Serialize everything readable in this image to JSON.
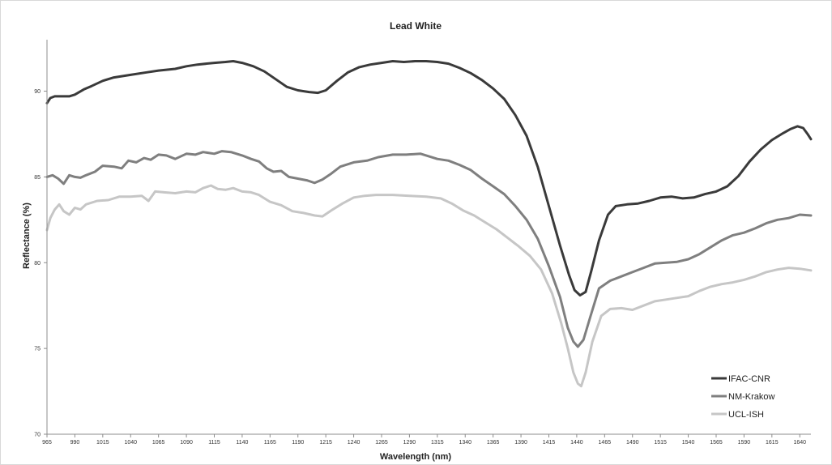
{
  "chart_data": {
    "type": "line",
    "title": "Lead White",
    "xlabel": "Wavelength (nm)",
    "ylabel": "Reflectance (%)",
    "xlim": [
      965,
      1650
    ],
    "ylim": [
      70,
      93
    ],
    "x_ticks": [
      965,
      990,
      1015,
      1040,
      1065,
      1090,
      1115,
      1140,
      1165,
      1190,
      1215,
      1240,
      1265,
      1290,
      1315,
      1340,
      1365,
      1390,
      1415,
      1440,
      1465,
      1490,
      1515,
      1540,
      1565,
      1590,
      1615,
      1640
    ],
    "y_ticks": [
      70,
      75,
      80,
      85,
      90
    ],
    "grid": false,
    "legend_position": "bottom-right",
    "series": [
      {
        "name": "IFAC-CNR",
        "color": "#3a3a3a",
        "points": [
          [
            965,
            89.3
          ],
          [
            968,
            89.6
          ],
          [
            972,
            89.7
          ],
          [
            978,
            89.7
          ],
          [
            985,
            89.7
          ],
          [
            990,
            89.8
          ],
          [
            998,
            90.1
          ],
          [
            1005,
            90.3
          ],
          [
            1015,
            90.6
          ],
          [
            1025,
            90.8
          ],
          [
            1040,
            90.95
          ],
          [
            1055,
            91.1
          ],
          [
            1065,
            91.2
          ],
          [
            1080,
            91.3
          ],
          [
            1090,
            91.45
          ],
          [
            1100,
            91.55
          ],
          [
            1115,
            91.65
          ],
          [
            1125,
            91.7
          ],
          [
            1132,
            91.75
          ],
          [
            1140,
            91.65
          ],
          [
            1150,
            91.45
          ],
          [
            1160,
            91.15
          ],
          [
            1170,
            90.7
          ],
          [
            1180,
            90.25
          ],
          [
            1190,
            90.05
          ],
          [
            1200,
            89.95
          ],
          [
            1208,
            89.9
          ],
          [
            1215,
            90.05
          ],
          [
            1225,
            90.6
          ],
          [
            1235,
            91.1
          ],
          [
            1245,
            91.4
          ],
          [
            1255,
            91.55
          ],
          [
            1265,
            91.65
          ],
          [
            1275,
            91.75
          ],
          [
            1285,
            91.7
          ],
          [
            1295,
            91.75
          ],
          [
            1305,
            91.75
          ],
          [
            1315,
            91.7
          ],
          [
            1325,
            91.6
          ],
          [
            1335,
            91.35
          ],
          [
            1345,
            91.05
          ],
          [
            1355,
            90.65
          ],
          [
            1365,
            90.15
          ],
          [
            1375,
            89.55
          ],
          [
            1385,
            88.6
          ],
          [
            1395,
            87.4
          ],
          [
            1405,
            85.6
          ],
          [
            1415,
            83.3
          ],
          [
            1425,
            81.0
          ],
          [
            1433,
            79.3
          ],
          [
            1438,
            78.4
          ],
          [
            1443,
            78.1
          ],
          [
            1448,
            78.3
          ],
          [
            1453,
            79.5
          ],
          [
            1460,
            81.3
          ],
          [
            1468,
            82.8
          ],
          [
            1475,
            83.3
          ],
          [
            1485,
            83.4
          ],
          [
            1495,
            83.45
          ],
          [
            1505,
            83.6
          ],
          [
            1515,
            83.8
          ],
          [
            1525,
            83.85
          ],
          [
            1535,
            83.75
          ],
          [
            1545,
            83.8
          ],
          [
            1555,
            84.0
          ],
          [
            1565,
            84.15
          ],
          [
            1575,
            84.45
          ],
          [
            1585,
            85.05
          ],
          [
            1595,
            85.9
          ],
          [
            1605,
            86.6
          ],
          [
            1615,
            87.15
          ],
          [
            1625,
            87.55
          ],
          [
            1632,
            87.8
          ],
          [
            1638,
            87.95
          ],
          [
            1643,
            87.85
          ],
          [
            1647,
            87.5
          ],
          [
            1650,
            87.2
          ]
        ]
      },
      {
        "name": "NM-Krakow",
        "color": "#7f7f7f",
        "points": [
          [
            965,
            85.0
          ],
          [
            970,
            85.1
          ],
          [
            975,
            84.9
          ],
          [
            980,
            84.6
          ],
          [
            985,
            85.1
          ],
          [
            990,
            85.0
          ],
          [
            995,
            84.95
          ],
          [
            1000,
            85.1
          ],
          [
            1008,
            85.3
          ],
          [
            1015,
            85.65
          ],
          [
            1025,
            85.6
          ],
          [
            1032,
            85.5
          ],
          [
            1038,
            85.95
          ],
          [
            1045,
            85.85
          ],
          [
            1052,
            86.1
          ],
          [
            1058,
            86.0
          ],
          [
            1065,
            86.3
          ],
          [
            1072,
            86.25
          ],
          [
            1080,
            86.05
          ],
          [
            1090,
            86.35
          ],
          [
            1098,
            86.3
          ],
          [
            1105,
            86.45
          ],
          [
            1115,
            86.35
          ],
          [
            1122,
            86.5
          ],
          [
            1130,
            86.45
          ],
          [
            1140,
            86.25
          ],
          [
            1148,
            86.05
          ],
          [
            1155,
            85.9
          ],
          [
            1162,
            85.5
          ],
          [
            1168,
            85.3
          ],
          [
            1175,
            85.35
          ],
          [
            1182,
            85.0
          ],
          [
            1190,
            84.9
          ],
          [
            1198,
            84.8
          ],
          [
            1205,
            84.65
          ],
          [
            1212,
            84.85
          ],
          [
            1220,
            85.2
          ],
          [
            1228,
            85.6
          ],
          [
            1240,
            85.85
          ],
          [
            1252,
            85.95
          ],
          [
            1262,
            86.15
          ],
          [
            1275,
            86.3
          ],
          [
            1287,
            86.3
          ],
          [
            1300,
            86.35
          ],
          [
            1315,
            86.05
          ],
          [
            1325,
            85.95
          ],
          [
            1335,
            85.7
          ],
          [
            1345,
            85.4
          ],
          [
            1355,
            84.9
          ],
          [
            1365,
            84.45
          ],
          [
            1375,
            84.0
          ],
          [
            1385,
            83.3
          ],
          [
            1395,
            82.5
          ],
          [
            1405,
            81.4
          ],
          [
            1415,
            79.8
          ],
          [
            1425,
            78.0
          ],
          [
            1432,
            76.2
          ],
          [
            1437,
            75.4
          ],
          [
            1441,
            75.1
          ],
          [
            1446,
            75.5
          ],
          [
            1452,
            76.8
          ],
          [
            1460,
            78.5
          ],
          [
            1470,
            78.95
          ],
          [
            1480,
            79.2
          ],
          [
            1490,
            79.45
          ],
          [
            1500,
            79.7
          ],
          [
            1510,
            79.95
          ],
          [
            1520,
            80.0
          ],
          [
            1530,
            80.05
          ],
          [
            1540,
            80.2
          ],
          [
            1550,
            80.5
          ],
          [
            1560,
            80.9
          ],
          [
            1570,
            81.3
          ],
          [
            1580,
            81.6
          ],
          [
            1590,
            81.75
          ],
          [
            1600,
            82.0
          ],
          [
            1610,
            82.3
          ],
          [
            1620,
            82.5
          ],
          [
            1630,
            82.6
          ],
          [
            1640,
            82.8
          ],
          [
            1650,
            82.75
          ]
        ]
      },
      {
        "name": "UCL-ISH",
        "color": "#c6c6c6",
        "points": [
          [
            965,
            81.9
          ],
          [
            968,
            82.6
          ],
          [
            972,
            83.1
          ],
          [
            976,
            83.4
          ],
          [
            980,
            83.0
          ],
          [
            985,
            82.8
          ],
          [
            990,
            83.2
          ],
          [
            995,
            83.1
          ],
          [
            1000,
            83.4
          ],
          [
            1010,
            83.6
          ],
          [
            1020,
            83.65
          ],
          [
            1030,
            83.85
          ],
          [
            1040,
            83.85
          ],
          [
            1050,
            83.9
          ],
          [
            1056,
            83.6
          ],
          [
            1062,
            84.15
          ],
          [
            1070,
            84.1
          ],
          [
            1080,
            84.05
          ],
          [
            1090,
            84.15
          ],
          [
            1098,
            84.1
          ],
          [
            1105,
            84.35
          ],
          [
            1112,
            84.5
          ],
          [
            1118,
            84.3
          ],
          [
            1125,
            84.25
          ],
          [
            1132,
            84.35
          ],
          [
            1140,
            84.15
          ],
          [
            1148,
            84.1
          ],
          [
            1155,
            83.95
          ],
          [
            1165,
            83.55
          ],
          [
            1175,
            83.35
          ],
          [
            1185,
            83.0
          ],
          [
            1195,
            82.9
          ],
          [
            1205,
            82.75
          ],
          [
            1212,
            82.7
          ],
          [
            1220,
            83.05
          ],
          [
            1230,
            83.45
          ],
          [
            1240,
            83.8
          ],
          [
            1250,
            83.9
          ],
          [
            1260,
            83.95
          ],
          [
            1275,
            83.95
          ],
          [
            1290,
            83.9
          ],
          [
            1305,
            83.85
          ],
          [
            1318,
            83.75
          ],
          [
            1328,
            83.45
          ],
          [
            1338,
            83.05
          ],
          [
            1348,
            82.75
          ],
          [
            1358,
            82.35
          ],
          [
            1368,
            81.95
          ],
          [
            1378,
            81.45
          ],
          [
            1388,
            80.95
          ],
          [
            1398,
            80.4
          ],
          [
            1408,
            79.6
          ],
          [
            1418,
            78.2
          ],
          [
            1426,
            76.5
          ],
          [
            1432,
            75.0
          ],
          [
            1437,
            73.6
          ],
          [
            1441,
            72.95
          ],
          [
            1444,
            72.8
          ],
          [
            1448,
            73.6
          ],
          [
            1454,
            75.4
          ],
          [
            1462,
            76.9
          ],
          [
            1470,
            77.3
          ],
          [
            1480,
            77.35
          ],
          [
            1490,
            77.25
          ],
          [
            1500,
            77.5
          ],
          [
            1510,
            77.75
          ],
          [
            1520,
            77.85
          ],
          [
            1530,
            77.95
          ],
          [
            1540,
            78.05
          ],
          [
            1550,
            78.35
          ],
          [
            1560,
            78.6
          ],
          [
            1570,
            78.75
          ],
          [
            1580,
            78.85
          ],
          [
            1590,
            79.0
          ],
          [
            1600,
            79.2
          ],
          [
            1610,
            79.45
          ],
          [
            1620,
            79.6
          ],
          [
            1630,
            79.7
          ],
          [
            1640,
            79.65
          ],
          [
            1650,
            79.55
          ]
        ]
      }
    ]
  }
}
